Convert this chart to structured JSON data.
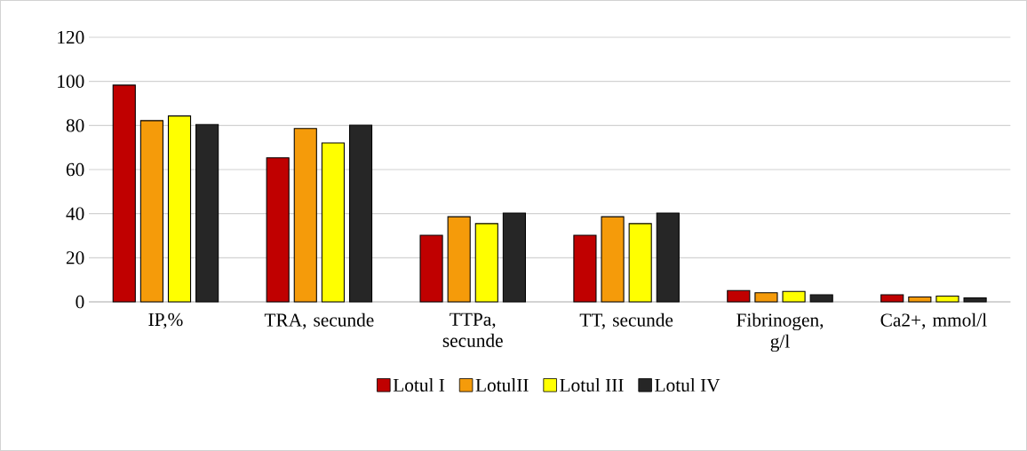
{
  "chart_data": {
    "type": "bar",
    "categories": [
      "IP,%",
      "TRA, secunde",
      "TTPa, secunde",
      "TT, secunde",
      "Fibrinogen, g/l",
      "Ca2+, mmol/l"
    ],
    "series": [
      {
        "name": "Lotul I",
        "color": "#c00000",
        "values": [
          98.3,
          65.3,
          30.2,
          30.2,
          5.1,
          3.2
        ]
      },
      {
        "name": "LotulII",
        "color": "#f59b0a",
        "values": [
          82.2,
          78.6,
          38.6,
          38.6,
          4.1,
          2.2
        ]
      },
      {
        "name": "Lotul III",
        "color": "#ffff00",
        "values": [
          84.3,
          72.1,
          35.5,
          35.5,
          4.7,
          2.6
        ]
      },
      {
        "name": "Lotul IV",
        "color": "#262626",
        "values": [
          80.4,
          80.1,
          40.3,
          40.3,
          3.2,
          1.8
        ]
      }
    ],
    "ylim": [
      0,
      120
    ],
    "yticks": [
      0,
      20,
      40,
      60,
      80,
      100,
      120
    ],
    "grid": "y",
    "legend": "bottom"
  }
}
